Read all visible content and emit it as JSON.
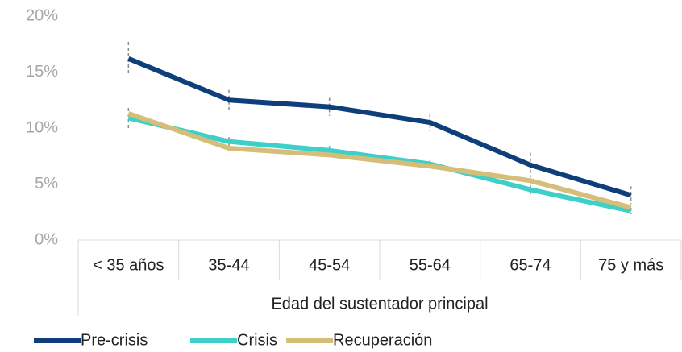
{
  "chart_data": {
    "type": "line",
    "x_label": "Edad del sustentador principal",
    "categories": [
      "< 35 años",
      "35-44",
      "45-54",
      "55-64",
      "65-74",
      "75 y más"
    ],
    "series": [
      {
        "name": "Pre-crisis",
        "color": "#0f3f7b",
        "values": [
          16.2,
          12.5,
          11.9,
          10.5,
          6.7,
          4.0
        ],
        "errors": [
          1.5,
          0.9,
          0.8,
          0.8,
          1.1,
          0.8
        ]
      },
      {
        "name": "Crisis",
        "color": "#3dcfc8",
        "values": [
          10.9,
          8.8,
          8.0,
          6.8,
          4.5,
          2.6
        ],
        "errors": [
          0.9,
          0.4,
          0.4,
          0.3,
          0.4,
          0.3
        ]
      },
      {
        "name": "Recuperación",
        "color": "#d5be7a",
        "values": [
          11.3,
          8.2,
          7.6,
          6.6,
          5.3,
          2.9
        ]
      }
    ],
    "ylim": [
      0,
      20
    ],
    "yticks": [
      {
        "value": 0,
        "label": "0%"
      },
      {
        "value": 5,
        "label": "5%"
      },
      {
        "value": 10,
        "label": "10%"
      },
      {
        "value": 15,
        "label": "15%"
      },
      {
        "value": 20,
        "label": "20%"
      }
    ],
    "grid": false
  }
}
